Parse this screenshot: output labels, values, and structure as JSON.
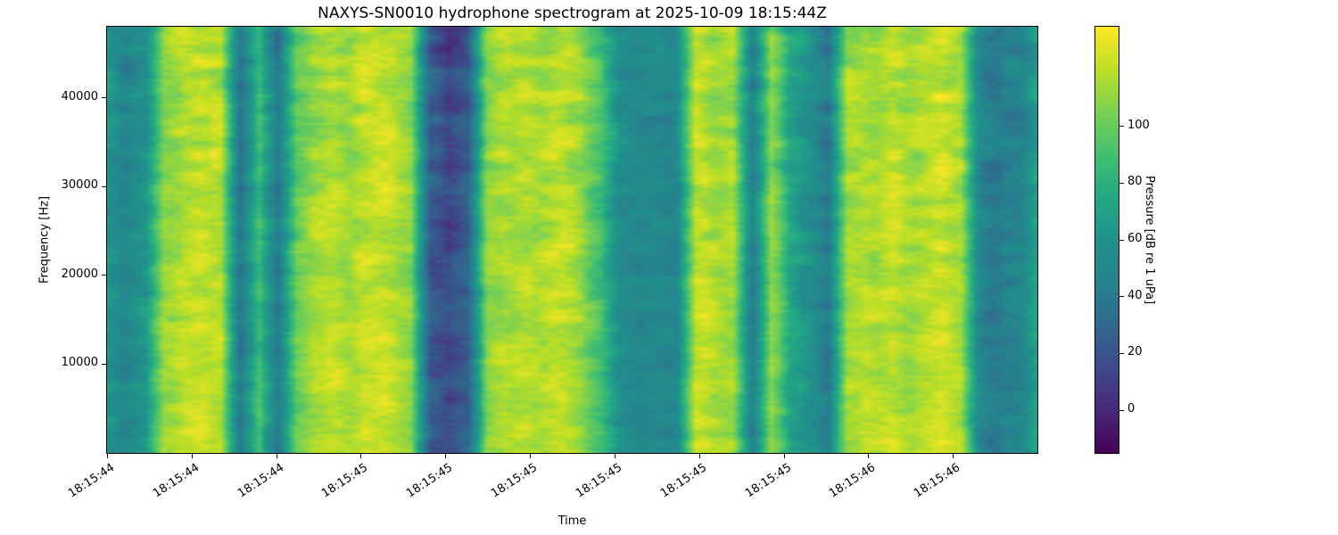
{
  "figure": {
    "background": "#ffffff",
    "text_color": "#000000"
  },
  "chart_data": {
    "type": "heatmap",
    "subtype": "spectrogram",
    "title": "NAXYS-SN0010 hydrophone spectrogram at 2025-10-09 18:15:44Z",
    "xlabel": "Time",
    "ylabel": "Frequency [Hz]",
    "x_tick_labels": [
      "18:15:44",
      "18:15:44",
      "18:15:44",
      "18:15:45",
      "18:15:45",
      "18:15:45",
      "18:15:45",
      "18:15:45",
      "18:15:45",
      "18:15:46",
      "18:15:46"
    ],
    "y_ticks": [
      10000,
      20000,
      30000,
      40000
    ],
    "ylim": [
      0,
      48000
    ],
    "grid": false,
    "colormap": "viridis",
    "colormap_stops": [
      [
        0,
        "#440154"
      ],
      [
        0.1,
        "#482878"
      ],
      [
        0.2,
        "#3e4989"
      ],
      [
        0.3,
        "#31688e"
      ],
      [
        0.4,
        "#26828e"
      ],
      [
        0.5,
        "#21918c"
      ],
      [
        0.6,
        "#22a884"
      ],
      [
        0.7,
        "#44bf70"
      ],
      [
        0.8,
        "#7ad151"
      ],
      [
        0.9,
        "#bddf26"
      ],
      [
        1,
        "#fde725"
      ]
    ],
    "colorbar": {
      "label": "Pressure [dB re 1 uPa]",
      "ticks": [
        0,
        20,
        40,
        60,
        80,
        100
      ],
      "clim": [
        -15,
        135
      ]
    },
    "band_profile_db": [
      60,
      50,
      62,
      115,
      122,
      125,
      118,
      35,
      85,
      38,
      105,
      118,
      122,
      118,
      120,
      122,
      112,
      28,
      15,
      25,
      108,
      122,
      118,
      120,
      122,
      112,
      90,
      55,
      48,
      52,
      55,
      122,
      120,
      118,
      48,
      112,
      70,
      60,
      40,
      112,
      120,
      122,
      118,
      120,
      122,
      115,
      52,
      42,
      50,
      70
    ],
    "texture": {
      "stripe_amp_db": 9,
      "fine_amp_db": 5,
      "column_jitter_db": 4
    }
  }
}
